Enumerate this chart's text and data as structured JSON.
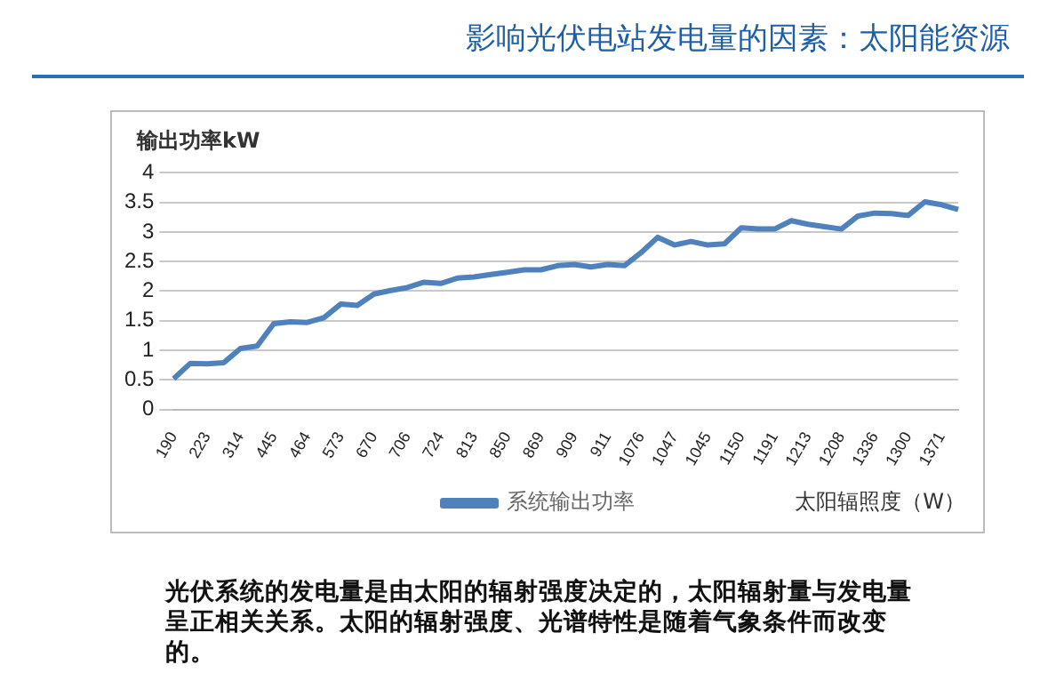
{
  "chart_data": {
    "type": "line",
    "title": "影响光伏电站发电量的因素：太阳能资源",
    "ylabel": "输出功率kW",
    "xlabel": "太阳辐照度（W）",
    "categories": [
      "190",
      null,
      "223",
      null,
      "314",
      null,
      "445",
      null,
      "464",
      null,
      "573",
      null,
      "670",
      null,
      "706",
      null,
      "724",
      null,
      "813",
      null,
      "850",
      null,
      "869",
      null,
      "909",
      null,
      "911",
      null,
      "1076",
      null,
      "1047",
      null,
      "1045",
      null,
      "1150",
      null,
      "1191",
      null,
      "1213",
      null,
      "1208",
      null,
      "1336",
      null,
      "1300",
      null,
      "1371",
      null
    ],
    "series": [
      {
        "name": "系统输出功率",
        "color": "#4f81bd",
        "values": [
          0.52,
          0.78,
          0.77,
          0.79,
          1.03,
          1.07,
          1.45,
          1.48,
          1.47,
          1.55,
          1.78,
          1.76,
          1.95,
          2.01,
          2.06,
          2.15,
          2.13,
          2.22,
          2.24,
          2.28,
          2.32,
          2.36,
          2.36,
          2.43,
          2.45,
          2.41,
          2.45,
          2.43,
          2.65,
          2.91,
          2.78,
          2.84,
          2.78,
          2.8,
          3.07,
          3.05,
          3.05,
          3.19,
          3.13,
          3.09,
          3.05,
          3.27,
          3.32,
          3.31,
          3.28,
          3.51,
          3.46,
          3.38
        ]
      }
    ],
    "ylim": [
      0,
      4
    ],
    "yticks": [
      0,
      0.5,
      1,
      1.5,
      2,
      2.5,
      3,
      3.5,
      4
    ],
    "grid": "y",
    "legend": "bottom",
    "marker": "none",
    "line_style": "solid",
    "annotations": [
      "光伏系统的发电量是由太阳的辐射强度决定的，太阳辐射量与发电量呈正相关关系。太阳的辐射强度、光谱特性是随着气象条件而改变的。"
    ]
  }
}
